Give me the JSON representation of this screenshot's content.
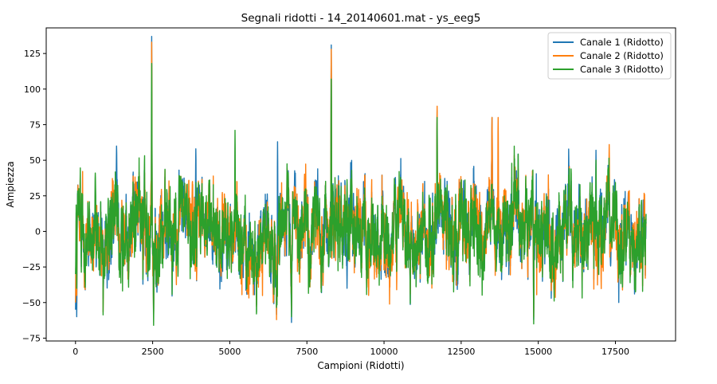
{
  "chart_data": {
    "type": "line",
    "title": "Segnali ridotti - 14_20140601.mat - ys_eeg5",
    "xlabel": "Campioni (Ridotti)",
    "ylabel": "Ampiezza",
    "xlim": [
      -950,
      19450
    ],
    "ylim": [
      -77,
      143
    ],
    "xticks": [
      0,
      2500,
      5000,
      7500,
      10000,
      12500,
      15000,
      17500
    ],
    "xtick_labels": [
      "0",
      "2500",
      "5000",
      "7500",
      "10000",
      "12500",
      "15000",
      "17500"
    ],
    "yticks": [
      -75,
      -50,
      -25,
      0,
      25,
      50,
      75,
      100,
      125
    ],
    "ytick_labels": [
      "−75",
      "−50",
      "−25",
      "0",
      "25",
      "50",
      "75",
      "100",
      "125"
    ],
    "grid": false,
    "legend_position": "top-right",
    "n_samples": 18500,
    "series": [
      {
        "name": "Canale 1 (Ridotto)",
        "color": "#1f77b4",
        "key_points": [
          [
            0,
            -55
          ],
          [
            40,
            -60
          ],
          [
            900,
            -43
          ],
          [
            1330,
            60
          ],
          [
            2470,
            137
          ],
          [
            2530,
            -58
          ],
          [
            3900,
            58
          ],
          [
            6550,
            63
          ],
          [
            7000,
            -64
          ],
          [
            8290,
            131
          ],
          [
            8800,
            -40
          ],
          [
            11720,
            85
          ],
          [
            13500,
            80
          ],
          [
            14850,
            -62
          ],
          [
            16870,
            57
          ]
        ]
      },
      {
        "name": "Canale 2 (Ridotto)",
        "color": "#ff7f0e",
        "key_points": [
          [
            0,
            -50
          ],
          [
            40,
            -45
          ],
          [
            2470,
            133
          ],
          [
            2530,
            -60
          ],
          [
            7000,
            -55
          ],
          [
            8290,
            128
          ],
          [
            9500,
            -45
          ],
          [
            11720,
            88
          ],
          [
            13500,
            80
          ],
          [
            13700,
            80
          ],
          [
            14850,
            -60
          ],
          [
            17300,
            61
          ]
        ]
      },
      {
        "name": "Canale 3 (Ridotto)",
        "color": "#2ca02c",
        "key_points": [
          [
            0,
            -30
          ],
          [
            40,
            -40
          ],
          [
            2470,
            118
          ],
          [
            2530,
            -66
          ],
          [
            5170,
            71
          ],
          [
            7000,
            -60
          ],
          [
            8290,
            107
          ],
          [
            11720,
            80
          ],
          [
            14850,
            -65
          ],
          [
            16870,
            50
          ]
        ]
      }
    ]
  }
}
